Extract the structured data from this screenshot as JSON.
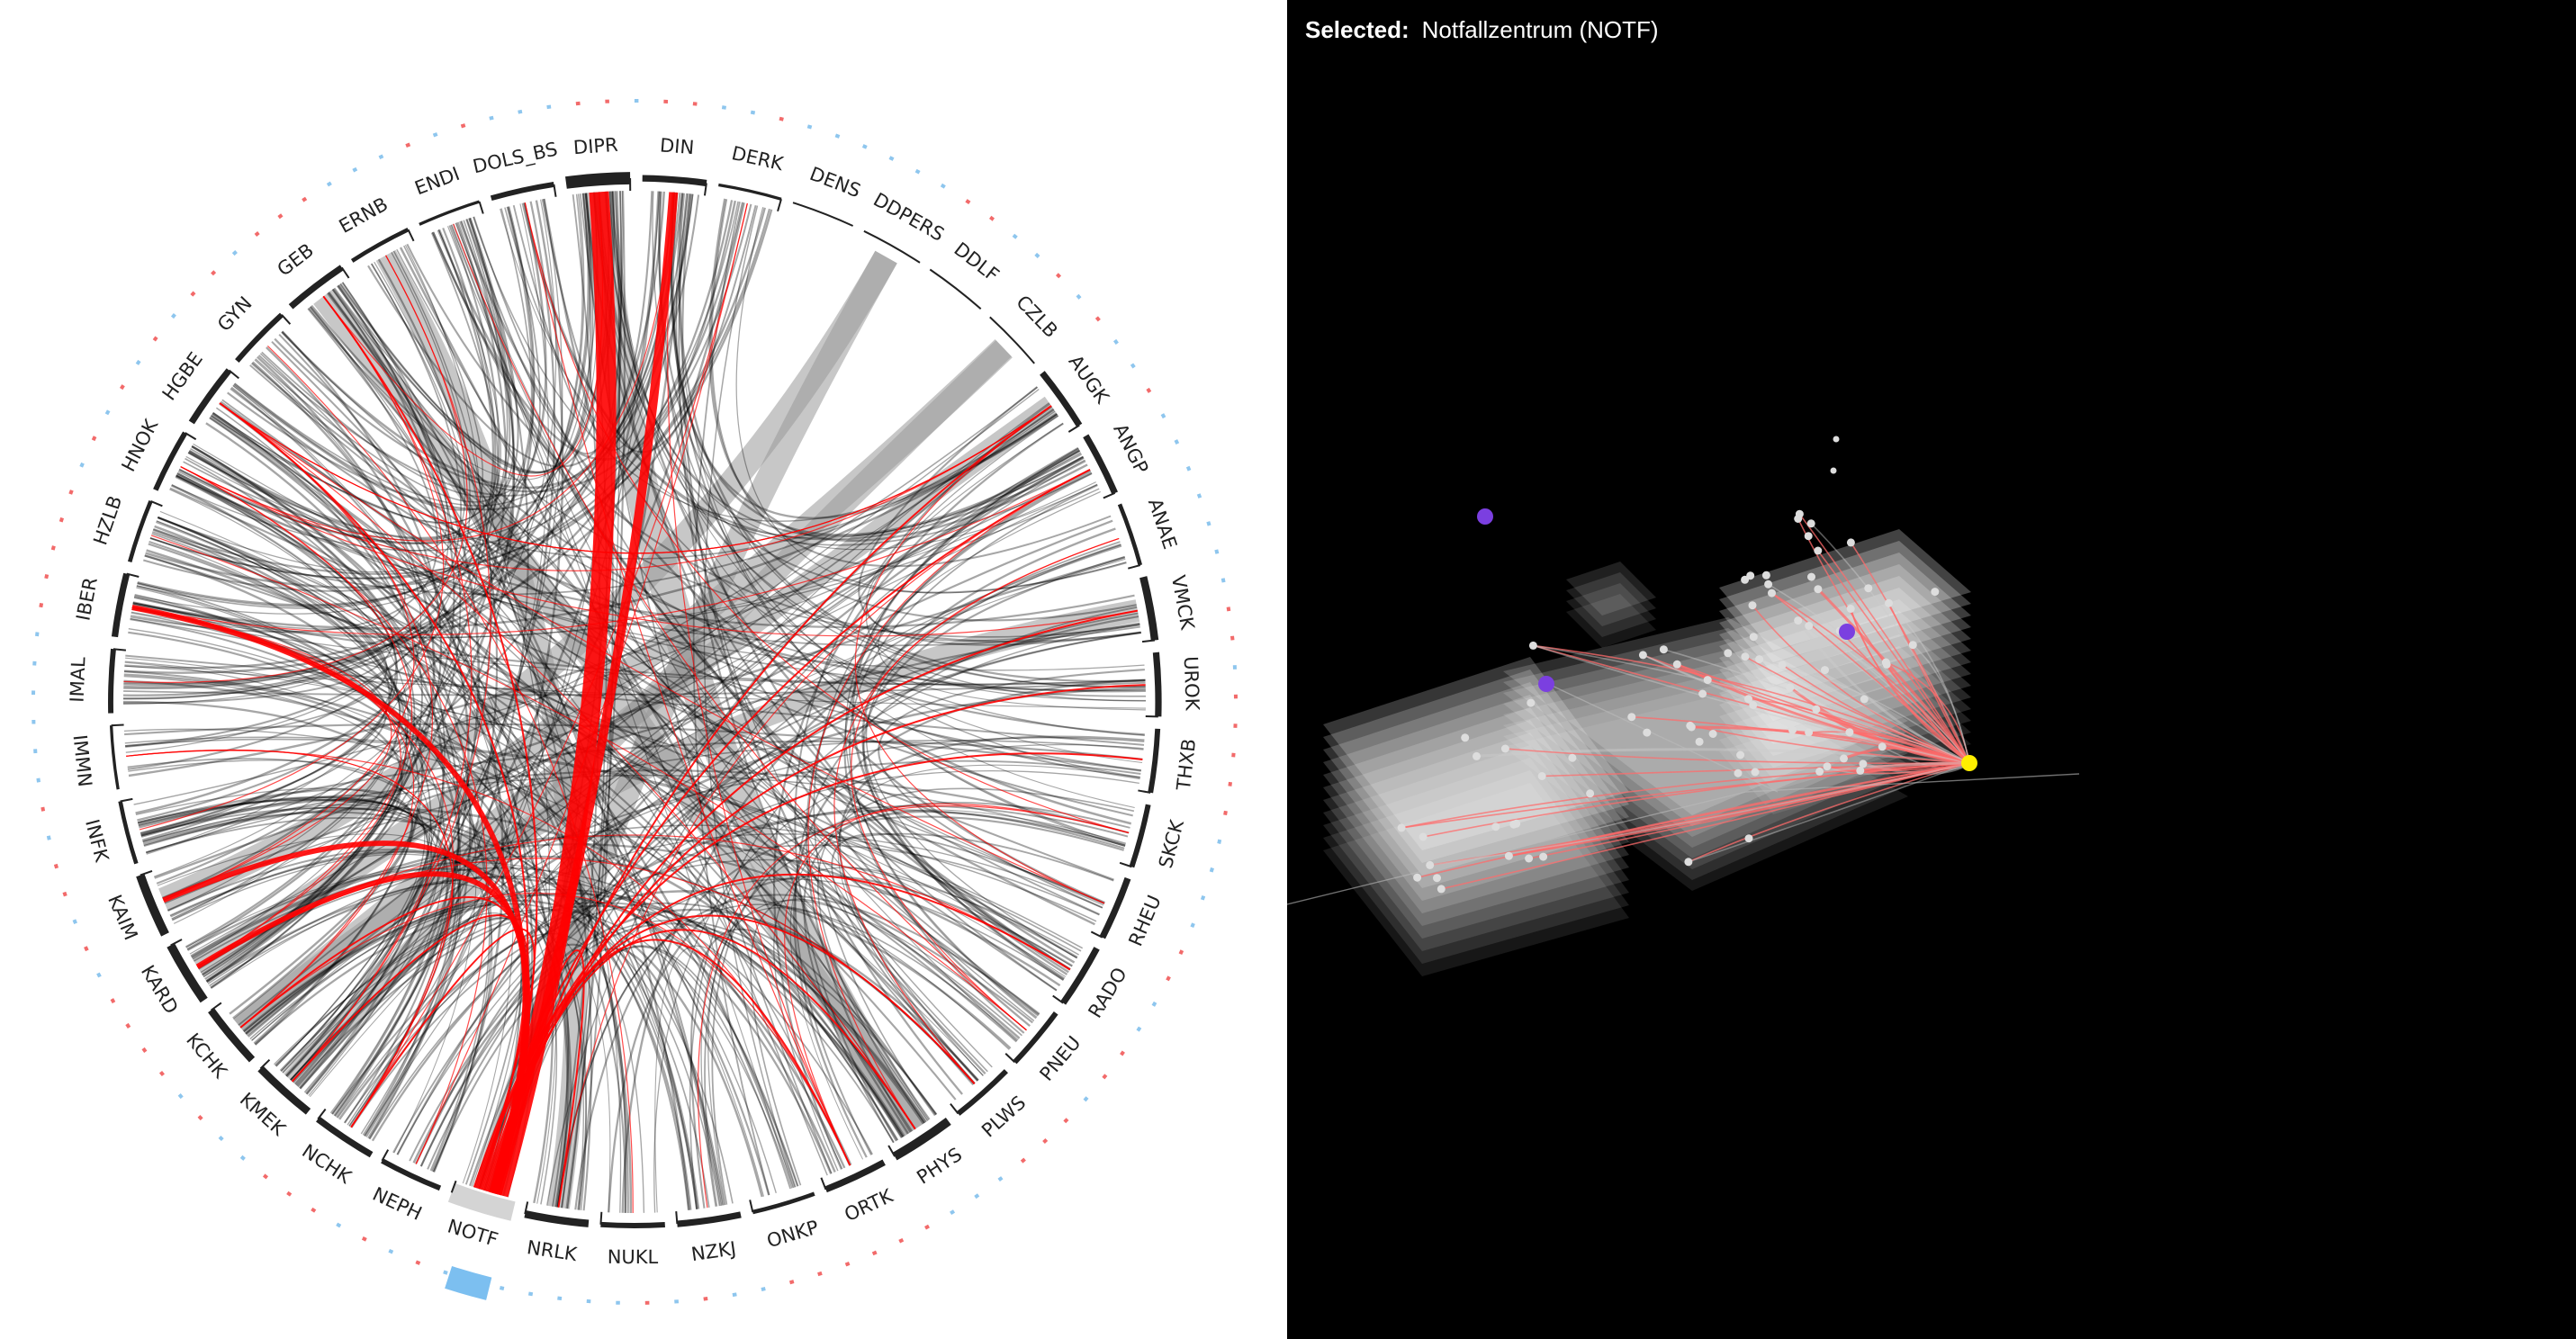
{
  "header": {
    "selected_label": "Selected:",
    "selected_value": "Notfallzentrum (NOTF)"
  },
  "chord": {
    "selected": "NOTF",
    "segments": [
      "DIPR",
      "DIN",
      "DERK",
      "DENS",
      "DDPERS",
      "DDLF",
      "CZLB",
      "AUGK",
      "ANGP",
      "ANAE",
      "VMCK",
      "UROK",
      "THXB",
      "SKCK",
      "RHEU",
      "RADO",
      "PNEU",
      "PLWS",
      "PHYS",
      "ORTK",
      "ONKP",
      "NZKJ",
      "NUKL",
      "NRLK",
      "NOTF",
      "NEPH",
      "NCHK",
      "KMEK",
      "KCHK",
      "KARD",
      "KAIM",
      "INFK",
      "IMMN",
      "IMAL",
      "IBER",
      "HZLB",
      "HNOK",
      "HGBE",
      "GYN",
      "GEB",
      "ERNB",
      "ENDI",
      "DOLS_BS"
    ],
    "weights": [
      9,
      4,
      1,
      0,
      0,
      0,
      0,
      4,
      4,
      2,
      5,
      4,
      3,
      3,
      4,
      4,
      3,
      3,
      6,
      4,
      2,
      4,
      3,
      5,
      6,
      3,
      4,
      5,
      5,
      6,
      6,
      2,
      1,
      3,
      4,
      2,
      3,
      4,
      3,
      4,
      2,
      1,
      3
    ],
    "colors": {
      "link": "#000000",
      "highlight": "#ff0000",
      "band": "#999999",
      "tick": "#222222",
      "ring_red": "#f26a6a",
      "ring_blue": "#8ec6ee",
      "selected_block": "#d4d4d4",
      "selected_ring": "#7cbff0"
    }
  },
  "scene": {
    "colors": {
      "background": "#000000",
      "plane": "#ffffff",
      "edge": "#ff6b6b",
      "node": "#dddddd",
      "selected_node": "#ffee00",
      "anchor": "#7b3fe0"
    }
  }
}
